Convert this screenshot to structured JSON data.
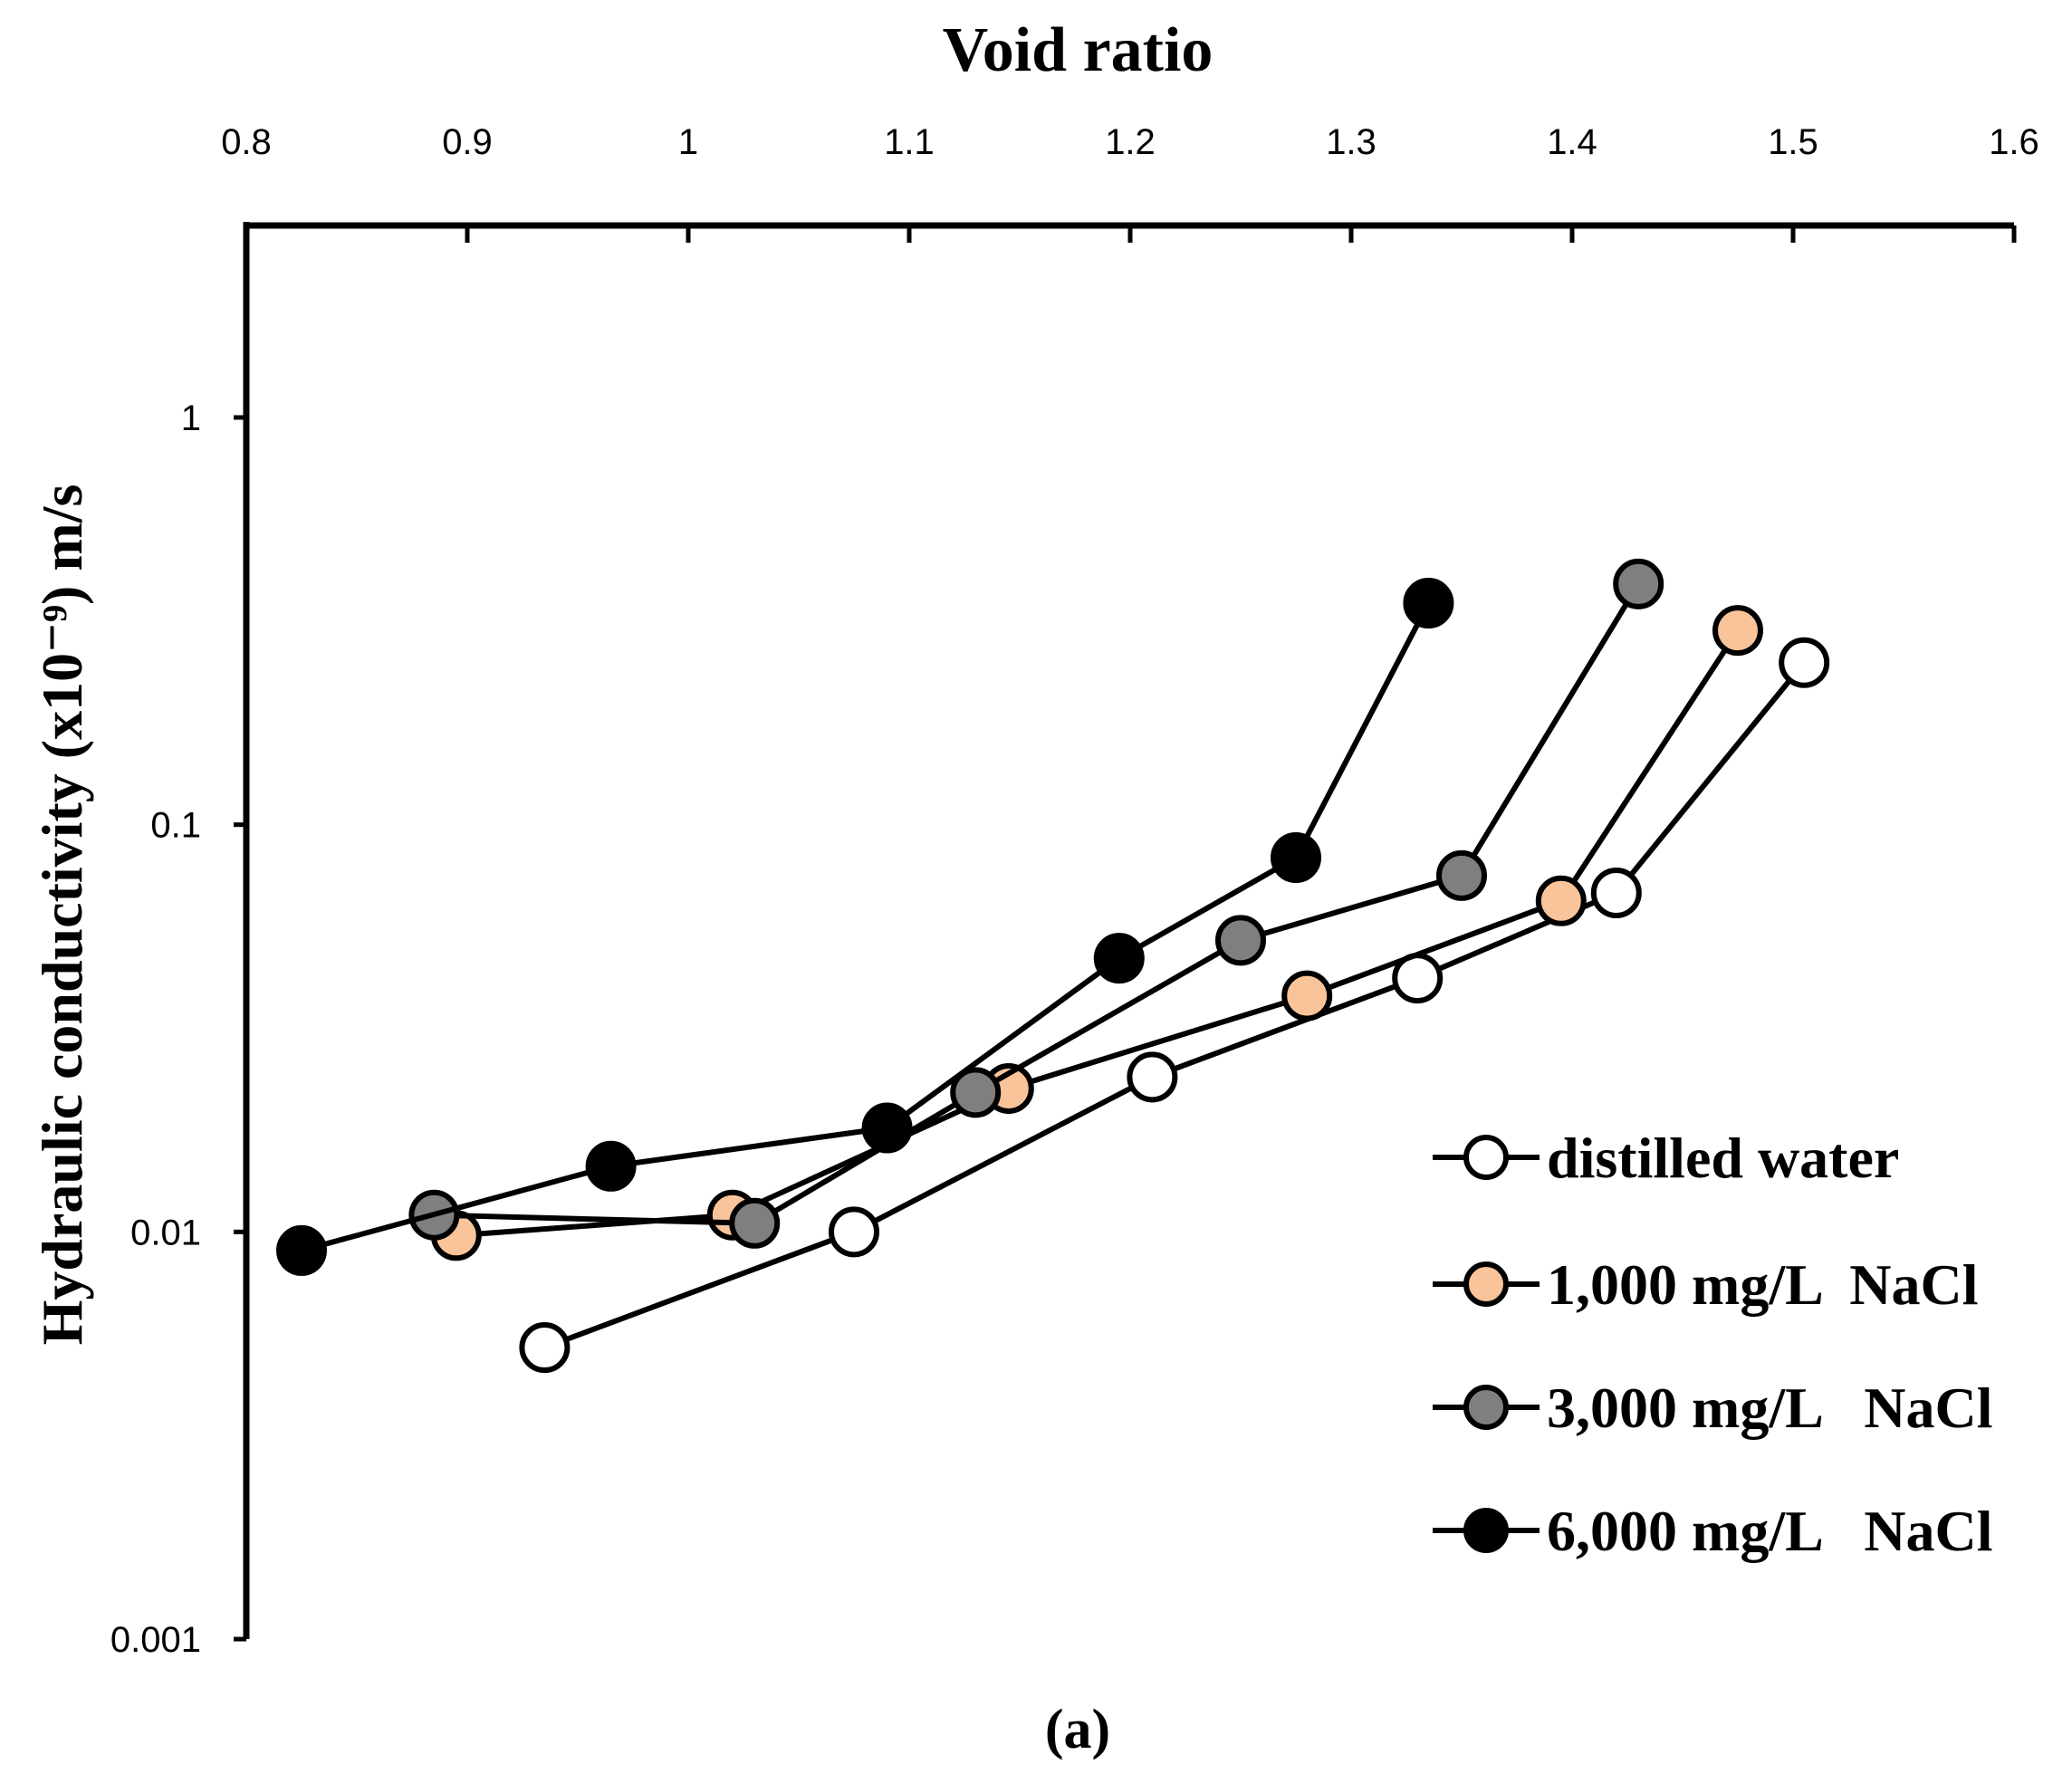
{
  "caption": "(a)",
  "chart_data": {
    "type": "scatter",
    "mode": "lines+markers",
    "title": "",
    "xlabel": "Void ratio",
    "x_axis_position": "top",
    "ylabel": "Hydraulic conductivity (x10⁻⁹) m/s",
    "yscale": "log",
    "xlim": [
      0.8,
      1.6
    ],
    "ylim": [
      0.001,
      3
    ],
    "x_ticks": [
      0.8,
      0.9,
      1.0,
      1.1,
      1.2,
      1.3,
      1.4,
      1.5,
      1.6
    ],
    "x_tick_labels": [
      "0.8",
      "0.9",
      "1",
      "1.1",
      "1.2",
      "1.3",
      "1.4",
      "1.5",
      "1.6"
    ],
    "y_ticks": [
      0.001,
      0.01,
      0.1,
      1
    ],
    "y_tick_labels": [
      "0.001",
      "0.01",
      "0.1",
      "1"
    ],
    "grid": false,
    "legend_position": "bottom-right",
    "series": [
      {
        "name": "distilled water",
        "marker_fill": "#ffffff",
        "line_color": "#000000",
        "x": [
          0.935,
          1.075,
          1.21,
          1.33,
          1.42,
          1.505
        ],
        "y": [
          0.0052,
          0.01,
          0.024,
          0.042,
          0.068,
          0.25
        ]
      },
      {
        "name": "1,000 mg/L  NaCl",
        "marker_fill": "#f9c49a",
        "line_color": "#000000",
        "x": [
          0.895,
          1.02,
          1.145,
          1.28,
          1.395,
          1.475
        ],
        "y": [
          0.0098,
          0.011,
          0.0225,
          0.038,
          0.065,
          0.3
        ]
      },
      {
        "name": "3,000 mg/L   NaCl",
        "marker_fill": "#7f7f7f",
        "line_color": "#000000",
        "x": [
          0.885,
          1.03,
          1.13,
          1.25,
          1.35,
          1.43
        ],
        "y": [
          0.011,
          0.0105,
          0.022,
          0.052,
          0.075,
          0.39
        ]
      },
      {
        "name": "6,000 mg/L   NaCl",
        "marker_fill": "#000000",
        "line_color": "#000000",
        "x": [
          0.825,
          0.965,
          1.09,
          1.195,
          1.275,
          1.335
        ],
        "y": [
          0.009,
          0.0145,
          0.018,
          0.047,
          0.083,
          0.35
        ]
      }
    ]
  }
}
